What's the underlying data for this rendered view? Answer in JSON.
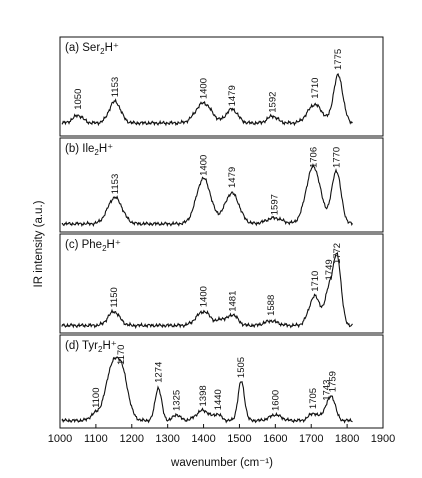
{
  "chart_data": [
    {
      "type": "line",
      "panel_label": "(a) Ser",
      "subscript": "2",
      "suffix": "H⁺",
      "peaks": [
        {
          "x": 1050,
          "label": "1050"
        },
        {
          "x": 1153,
          "label": "1153"
        },
        {
          "x": 1400,
          "label": "1400"
        },
        {
          "x": 1479,
          "label": "1479"
        },
        {
          "x": 1592,
          "label": "1592"
        },
        {
          "x": 1710,
          "label": "1710"
        },
        {
          "x": 1775,
          "label": "1775"
        }
      ],
      "bands": [
        {
          "x": 1050,
          "h": 0.1,
          "w": 14
        },
        {
          "x": 1153,
          "h": 0.28,
          "w": 16
        },
        {
          "x": 1400,
          "h": 0.26,
          "w": 22
        },
        {
          "x": 1479,
          "h": 0.18,
          "w": 16
        },
        {
          "x": 1592,
          "h": 0.09,
          "w": 14
        },
        {
          "x": 1710,
          "h": 0.24,
          "w": 20
        },
        {
          "x": 1775,
          "h": 0.62,
          "w": 13
        }
      ],
      "baseline": 0.09
    },
    {
      "type": "line",
      "panel_label": "(b) Ile",
      "subscript": "2",
      "suffix": "H⁺",
      "peaks": [
        {
          "x": 1153,
          "label": "1153"
        },
        {
          "x": 1400,
          "label": "1400"
        },
        {
          "x": 1479,
          "label": "1479"
        },
        {
          "x": 1597,
          "label": "1597"
        },
        {
          "x": 1706,
          "label": "1706"
        },
        {
          "x": 1770,
          "label": "1770"
        }
      ],
      "bands": [
        {
          "x": 1153,
          "h": 0.36,
          "w": 20
        },
        {
          "x": 1400,
          "h": 0.62,
          "w": 20
        },
        {
          "x": 1479,
          "h": 0.42,
          "w": 20
        },
        {
          "x": 1597,
          "h": 0.08,
          "w": 22
        },
        {
          "x": 1706,
          "h": 0.78,
          "w": 20
        },
        {
          "x": 1770,
          "h": 0.72,
          "w": 13
        }
      ],
      "baseline": 0.03
    },
    {
      "type": "line",
      "panel_label": "(c) Phe",
      "subscript": "2",
      "suffix": "H⁺",
      "peaks": [
        {
          "x": 1150,
          "label": "1150"
        },
        {
          "x": 1400,
          "label": "1400"
        },
        {
          "x": 1481,
          "label": "1481"
        },
        {
          "x": 1588,
          "label": "1588"
        },
        {
          "x": 1710,
          "label": "1710"
        },
        {
          "x": 1749,
          "label": "1749"
        },
        {
          "x": 1772,
          "label": "1772"
        }
      ],
      "bands": [
        {
          "x": 1150,
          "h": 0.18,
          "w": 16
        },
        {
          "x": 1400,
          "h": 0.18,
          "w": 20
        },
        {
          "x": 1450,
          "h": 0.07,
          "w": 10
        },
        {
          "x": 1481,
          "h": 0.14,
          "w": 14
        },
        {
          "x": 1588,
          "h": 0.06,
          "w": 18
        },
        {
          "x": 1710,
          "h": 0.38,
          "w": 16
        },
        {
          "x": 1749,
          "h": 0.42,
          "w": 10
        },
        {
          "x": 1772,
          "h": 0.9,
          "w": 11
        }
      ],
      "baseline": 0.02
    },
    {
      "type": "line",
      "panel_label": "(d) Tyr",
      "subscript": "2",
      "suffix": "H⁺",
      "peaks": [
        {
          "x": 1100,
          "label": "1100"
        },
        {
          "x": 1170,
          "label": "1170"
        },
        {
          "x": 1274,
          "label": "1274"
        },
        {
          "x": 1325,
          "label": "1325"
        },
        {
          "x": 1398,
          "label": "1398"
        },
        {
          "x": 1440,
          "label": "1440"
        },
        {
          "x": 1505,
          "label": "1505"
        },
        {
          "x": 1600,
          "label": "1600"
        },
        {
          "x": 1705,
          "label": "1705"
        },
        {
          "x": 1743,
          "label": "1743"
        },
        {
          "x": 1759,
          "label": "1759"
        }
      ],
      "bands": [
        {
          "x": 1100,
          "h": 0.1,
          "w": 14
        },
        {
          "x": 1140,
          "h": 0.55,
          "w": 16
        },
        {
          "x": 1170,
          "h": 0.72,
          "w": 18
        },
        {
          "x": 1274,
          "h": 0.45,
          "w": 9
        },
        {
          "x": 1325,
          "h": 0.08,
          "w": 10
        },
        {
          "x": 1398,
          "h": 0.14,
          "w": 18
        },
        {
          "x": 1440,
          "h": 0.08,
          "w": 10
        },
        {
          "x": 1505,
          "h": 0.54,
          "w": 9
        },
        {
          "x": 1600,
          "h": 0.08,
          "w": 16
        },
        {
          "x": 1705,
          "h": 0.1,
          "w": 12
        },
        {
          "x": 1743,
          "h": 0.16,
          "w": 12
        },
        {
          "x": 1759,
          "h": 0.26,
          "w": 10
        }
      ],
      "baseline": 0.02
    }
  ],
  "axes": {
    "xlim": [
      1000,
      1900
    ],
    "x_ticks": [
      "1000",
      "1100",
      "1200",
      "1300",
      "1400",
      "1500",
      "1600",
      "1700",
      "1800",
      "1900"
    ],
    "xlabel": "wavenumber (cm⁻¹)",
    "ylabel": "IR intensity (a.u.)"
  },
  "colors": {
    "line": "#111111",
    "frame": "#111111",
    "background": "#ffffff"
  }
}
